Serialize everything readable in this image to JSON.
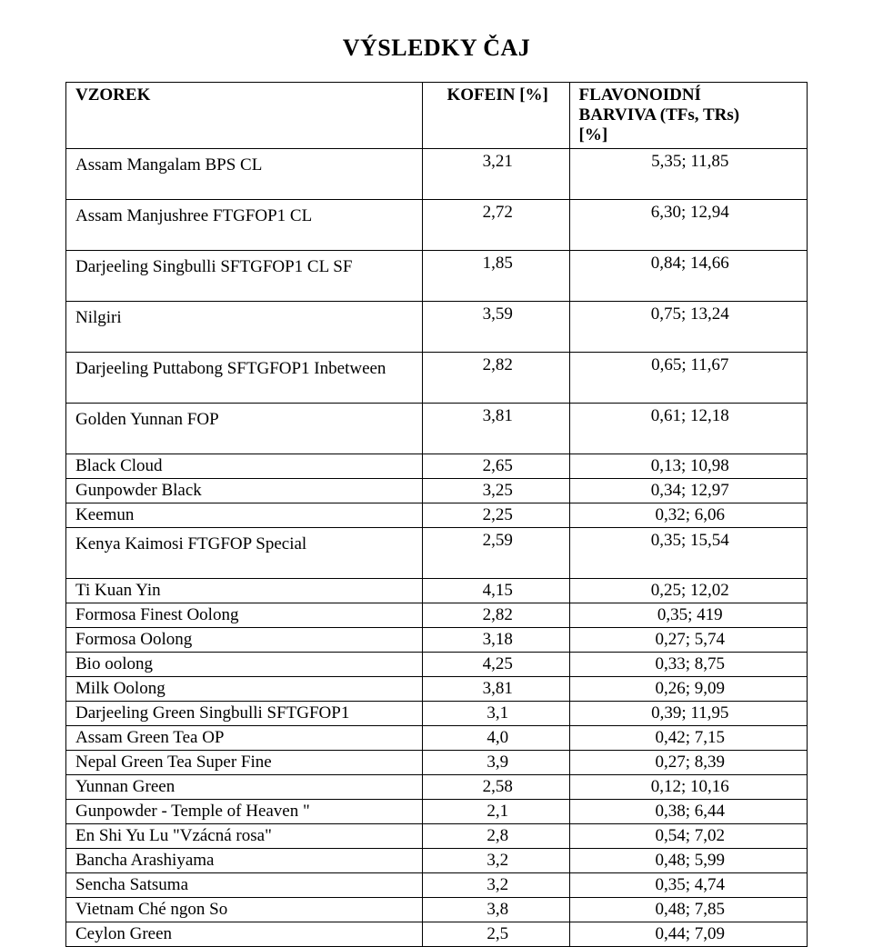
{
  "title": "VÝSLEDKY ČAJ",
  "headers": {
    "sample": "VZOREK",
    "kofein": "KOFEIN [%]",
    "flav_line1": "FLAVONOIDNÍ",
    "flav_line2": "BARVIVA (TFs, TRs)",
    "flav_line3": "[%]"
  },
  "rows": [
    {
      "sample": "Assam Mangalam BPS CL",
      "k": "3,21",
      "f": "5,35; 11,85",
      "tall": true
    },
    {
      "sample": "Assam Manjushree FTGFOP1 CL",
      "k": "2,72",
      "f": "6,30; 12,94",
      "tall": true
    },
    {
      "sample": "Darjeeling Singbulli SFTGFOP1 CL SF",
      "k": "1,85",
      "f": "0,84; 14,66",
      "tall": true
    },
    {
      "sample": "Nilgiri",
      "k": "3,59",
      "f": "0,75; 13,24",
      "tall": true
    },
    {
      "sample": "Darjeeling Puttabong SFTGFOP1 Inbetween",
      "k": "2,82",
      "f": "0,65; 11,67",
      "tall": true
    },
    {
      "sample": "Golden Yunnan FOP",
      "k": "3,81",
      "f": "0,61; 12,18",
      "tall": true
    },
    {
      "sample": "Black Cloud",
      "k": "2,65",
      "f": "0,13; 10,98",
      "tight": true
    },
    {
      "sample": "Gunpowder Black",
      "k": "3,25",
      "f": "0,34; 12,97",
      "tight": true
    },
    {
      "sample": "Keemun",
      "k": "2,25",
      "f": "0,32; 6,06",
      "tight": true
    },
    {
      "sample": "Kenya Kaimosi FTGFOP Special",
      "k": "2,59",
      "f": "0,35; 15,54",
      "tall": true
    },
    {
      "sample": "Ti Kuan Yin",
      "k": "4,15",
      "f": "0,25; 12,02",
      "tight": true
    },
    {
      "sample": "Formosa Finest Oolong",
      "k": "2,82",
      "f": "0,35; 419",
      "tight": true
    },
    {
      "sample": "Formosa Oolong",
      "k": "3,18",
      "f": "0,27; 5,74",
      "tight": true
    },
    {
      "sample": "Bio oolong",
      "k": "4,25",
      "f": "0,33; 8,75",
      "tight": true
    },
    {
      "sample": "Milk Oolong",
      "k": "3,81",
      "f": "0,26; 9,09",
      "tight": true
    },
    {
      "sample": "Darjeeling Green Singbulli SFTGFOP1",
      "k": "3,1",
      "f": "0,39; 11,95",
      "tight": true
    },
    {
      "sample": "Assam Green Tea OP",
      "k": "4,0",
      "f": "0,42; 7,15",
      "tight": true
    },
    {
      "sample": "Nepal Green Tea Super Fine",
      "k": "3,9",
      "f": "0,27; 8,39",
      "tight": true
    },
    {
      "sample": "Yunnan Green",
      "k": "2,58",
      "f": "0,12; 10,16",
      "tight": true
    },
    {
      "sample": "Gunpowder - Temple of Heaven \"",
      "k": "2,1",
      "f": "0,38; 6,44",
      "tight": true
    },
    {
      "sample": "En Shi Yu Lu \"Vzácná rosa\"",
      "k": "2,8",
      "f": "0,54; 7,02",
      "tight": true
    },
    {
      "sample": "Bancha Arashiyama",
      "k": "3,2",
      "f": "0,48; 5,99",
      "tight": true
    },
    {
      "sample": "Sencha Satsuma",
      "k": "3,2",
      "f": "0,35; 4,74",
      "tight": true
    },
    {
      "sample": "Vietnam Ché ngon So",
      "k": "3,8",
      "f": "0,48; 7,85",
      "tight": true
    },
    {
      "sample": "Ceylon Green",
      "k": "2,5",
      "f": "0,44; 7,09",
      "tight": true
    }
  ]
}
